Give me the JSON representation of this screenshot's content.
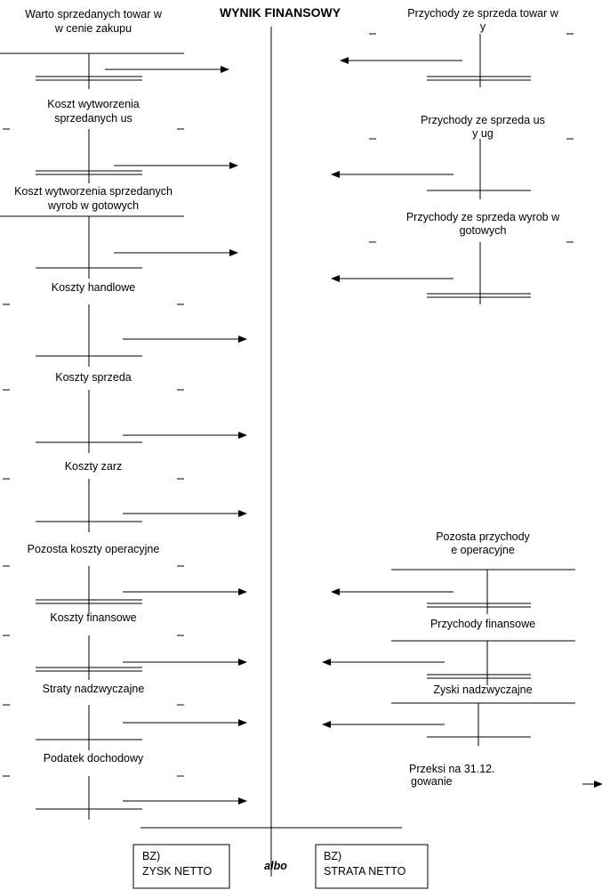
{
  "title": "WYNIK FINANSOWY",
  "left_accounts": [
    {
      "label": [
        "Warto    sprzedanych towar  w",
        "w cenie zakupu"
      ]
    },
    {
      "label": [
        "Koszt wytworzenia",
        "sprzedanych us"
      ]
    },
    {
      "label": [
        "Koszt wytworzenia sprzedanych",
        "wyrob  w gotowych"
      ]
    },
    {
      "label": [
        "Koszty handlowe"
      ]
    },
    {
      "label": [
        "Koszty sprzeda"
      ]
    },
    {
      "label": [
        "Koszty zarz"
      ]
    },
    {
      "label": [
        "Pozosta    koszty operacyjne"
      ]
    },
    {
      "label": [
        "Koszty finansowe"
      ]
    },
    {
      "label": [
        "Straty nadzwyczajne"
      ]
    },
    {
      "label": [
        "Podatek dochodowy"
      ]
    }
  ],
  "right_accounts": [
    {
      "label": [
        "Przychody ze sprzeda    towar  w",
        "y"
      ]
    },
    {
      "label": [
        "Przychody ze sprzeda    us",
        "y              ug"
      ]
    },
    {
      "label": [
        "Przychody ze sprzeda    wyrob  w",
        "gotowych"
      ]
    },
    {
      "label": [
        "Pozosta    przychody",
        "e    operacyjne"
      ]
    },
    {
      "label": [
        "Przychody finansowe"
      ]
    },
    {
      "label": [
        "Zyski nadzwyczajne"
      ]
    }
  ],
  "transfer_note": [
    "Przeksi               na 31.12.",
    "gowanie"
  ],
  "result_boxes": [
    {
      "code": "BZ)",
      "name": "ZYSK NETTO"
    },
    {
      "code": "BZ)",
      "name": "STRATA NETTO"
    }
  ],
  "connector": "albo"
}
